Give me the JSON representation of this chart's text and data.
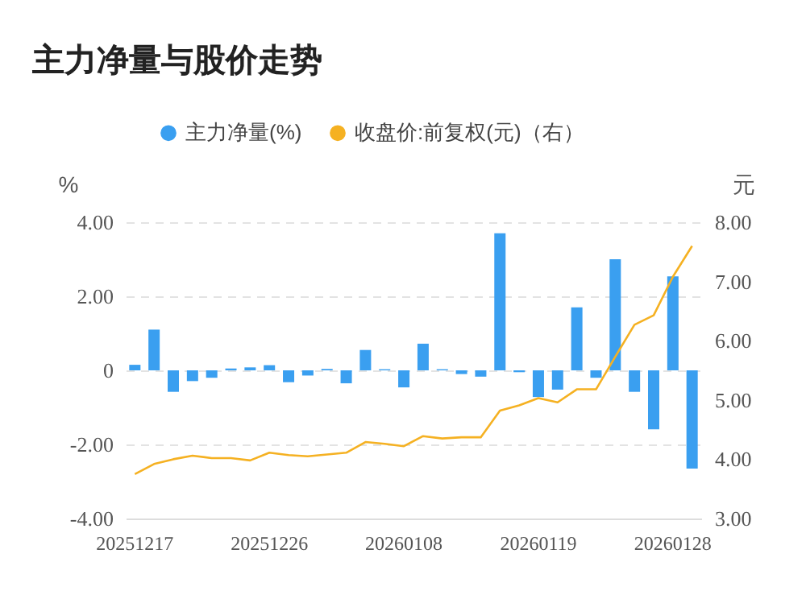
{
  "chart_data": {
    "type": "bar",
    "title": "主力净量与股价走势",
    "ylabel": "%",
    "y2label": "元",
    "categories": [
      "20251217",
      null,
      null,
      null,
      null,
      null,
      null,
      "20251226",
      null,
      null,
      null,
      null,
      null,
      null,
      "20260108",
      null,
      null,
      null,
      null,
      null,
      null,
      "20260119",
      null,
      null,
      null,
      null,
      null,
      null,
      "20260128",
      null
    ],
    "series": [
      {
        "name": "主力净量(%)",
        "color": "#3a9ff0",
        "values": [
          0.15,
          1.1,
          -0.58,
          -0.29,
          -0.2,
          0.05,
          0.08,
          0.14,
          -0.32,
          -0.14,
          0.04,
          -0.35,
          0.55,
          0.03,
          -0.46,
          0.72,
          0.03,
          -0.1,
          -0.17,
          3.7,
          -0.05,
          -0.72,
          -0.52,
          1.7,
          -0.2,
          3.0,
          -0.58,
          -1.59,
          2.54,
          -2.65
        ]
      },
      {
        "name": "收盘价:前复权(元)（右）",
        "type": "line",
        "axis": "y2",
        "color": "#f5b122",
        "values": [
          3.75,
          3.92,
          4.0,
          4.06,
          4.02,
          4.02,
          3.98,
          4.11,
          4.07,
          4.05,
          4.08,
          4.11,
          4.29,
          4.26,
          4.22,
          4.39,
          4.35,
          4.37,
          4.37,
          4.82,
          4.91,
          5.03,
          4.96,
          5.18,
          5.18,
          5.73,
          6.27,
          6.43,
          7.08,
          7.6
        ]
      }
    ],
    "ylim": [
      -4,
      4
    ],
    "yticks": [
      {
        "value": -4,
        "label": "-4.00"
      },
      {
        "value": -2,
        "label": "-2.00"
      },
      0,
      {
        "value": 2,
        "label": "2.00"
      },
      {
        "value": 4,
        "label": "4.00"
      }
    ],
    "y2lim": [
      3,
      8
    ],
    "y2ticks": [
      {
        "value": 3,
        "label": "3.00"
      },
      {
        "value": 4,
        "label": "4.00"
      },
      {
        "value": 5,
        "label": "5.00"
      },
      {
        "value": 6,
        "label": "6.00"
      },
      {
        "value": 7,
        "label": "7.00"
      },
      {
        "value": 8,
        "label": "8.00"
      }
    ],
    "grid": "y",
    "legend": "top",
    "marker": "none"
  }
}
